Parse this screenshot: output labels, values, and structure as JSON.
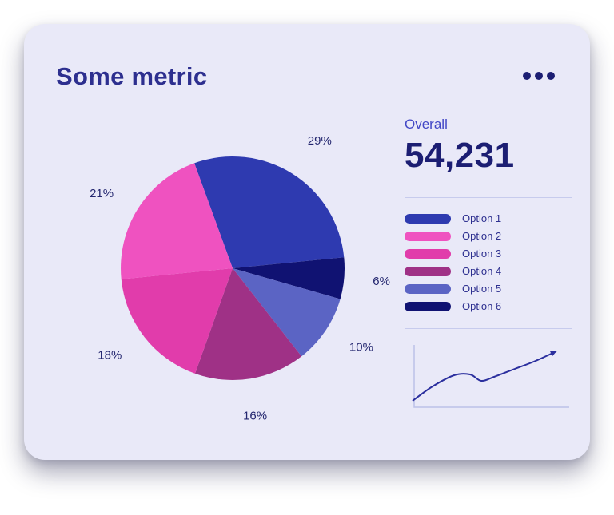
{
  "card": {
    "title": "Some metric"
  },
  "overall": {
    "label": "Overall",
    "value": "54,231"
  },
  "colors": {
    "card_bg": "#e9e9f8",
    "title": "#2d2f8f",
    "accent_text": "#4247c6",
    "value_text": "#1c1e73",
    "label_text": "#23266f",
    "legend_text": "#2d2f8f",
    "divider": "#c7cbed",
    "menu_dot": "#1c1e73",
    "spark_line": "#2b2f9e",
    "spark_axis": "#bcc1e8"
  },
  "chart_data": [
    {
      "type": "pie",
      "title": "Some metric",
      "overall_value": 54231,
      "start_angle_deg": -20,
      "clockwise": true,
      "legend_position": "right",
      "slices": [
        {
          "label": "Option 1",
          "percent": 29,
          "color": "#2e3ab0"
        },
        {
          "label": "Option 2",
          "percent": 21,
          "color": "#ef52c0"
        },
        {
          "label": "Option 3",
          "percent": 18,
          "color": "#e13cab"
        },
        {
          "label": "Option 4",
          "percent": 16,
          "color": "#9f3186"
        },
        {
          "label": "Option 5",
          "percent": 10,
          "color": "#5b64c4"
        },
        {
          "label": "Option 6",
          "percent": 6,
          "color": "#101272"
        }
      ]
    },
    {
      "type": "line",
      "name": "trend-sparkline",
      "arrow_end": true,
      "axes": "left-bottom",
      "points": [
        [
          10,
          76
        ],
        [
          35,
          58
        ],
        [
          62,
          44
        ],
        [
          82,
          43
        ],
        [
          96,
          51
        ],
        [
          112,
          46
        ],
        [
          138,
          36
        ],
        [
          164,
          26
        ],
        [
          190,
          14
        ]
      ]
    }
  ]
}
